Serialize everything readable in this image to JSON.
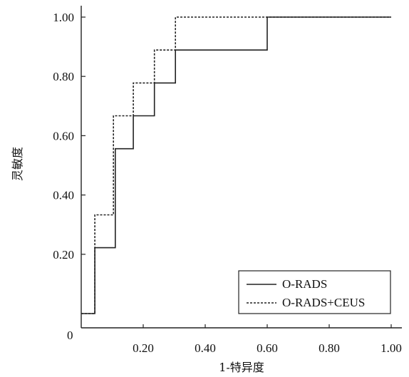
{
  "chart_data": {
    "type": "line",
    "title": "",
    "xlabel": "1-特异度",
    "ylabel": "灵敏度",
    "xlim": [
      0,
      1.0
    ],
    "ylim": [
      0,
      1.0
    ],
    "origin_label": "0",
    "x_ticks": [
      {
        "value": 0.2,
        "label": "0.20"
      },
      {
        "value": 0.4,
        "label": "0.40"
      },
      {
        "value": 0.6,
        "label": "0.60"
      },
      {
        "value": 0.8,
        "label": "0.80"
      },
      {
        "value": 1.0,
        "label": "1.00"
      }
    ],
    "y_ticks": [
      {
        "value": 0.2,
        "label": "0.20"
      },
      {
        "value": 0.4,
        "label": "0.40"
      },
      {
        "value": 0.6,
        "label": "0.60"
      },
      {
        "value": 0.8,
        "label": "0.80"
      },
      {
        "value": 1.0,
        "label": "1.00"
      }
    ],
    "legend_position": "bottom-right",
    "series": [
      {
        "name": "O-RADS",
        "style": "solid",
        "color": "#222222",
        "x": [
          0.0,
          0.044,
          0.044,
          0.11,
          0.11,
          0.168,
          0.168,
          0.236,
          0.236,
          0.304,
          0.304,
          0.6,
          0.6,
          1.0
        ],
        "y": [
          0.0,
          0.0,
          0.222,
          0.222,
          0.556,
          0.556,
          0.667,
          0.667,
          0.778,
          0.778,
          0.889,
          0.889,
          1.0,
          1.0
        ]
      },
      {
        "name": "O-RADS+CEUS",
        "style": "dashed",
        "color": "#222222",
        "x": [
          0.0,
          0.044,
          0.044,
          0.104,
          0.104,
          0.168,
          0.168,
          0.236,
          0.236,
          0.304,
          0.304,
          1.0
        ],
        "y": [
          0.0,
          0.0,
          0.333,
          0.333,
          0.667,
          0.667,
          0.778,
          0.778,
          0.889,
          0.889,
          1.0,
          1.0
        ]
      }
    ]
  }
}
